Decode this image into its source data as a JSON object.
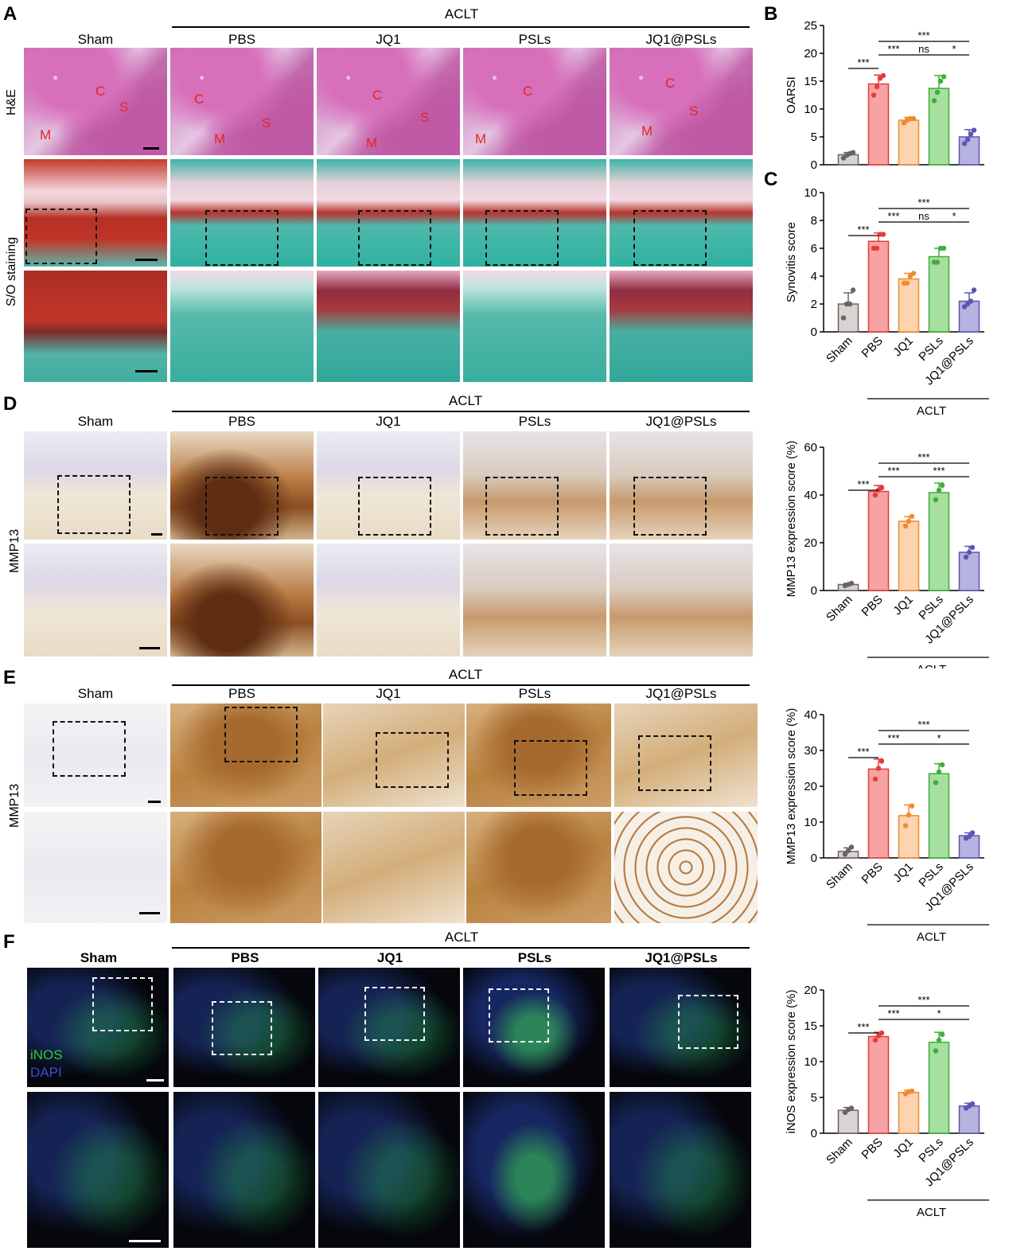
{
  "panel_letters": {
    "A": "A",
    "B": "B",
    "C": "C",
    "D": "D",
    "E": "E",
    "F": "F"
  },
  "group_label": "ACLT",
  "groups": [
    "Sham",
    "PBS",
    "JQ1",
    "PSLs",
    "JQ1@PSLs"
  ],
  "row_labels": {
    "he": "H&E",
    "so": "S/O staining",
    "mmp13": "MMP13"
  },
  "tissue_letters": {
    "c": "C",
    "s": "S",
    "m": "M"
  },
  "stain_legend": {
    "green": "iNOS",
    "blue": "DAPI"
  },
  "colors": {
    "Sham": "#d9d4d2",
    "Sham_edge": "#6b6360",
    "PBS": "#f5a3a3",
    "PBS_edge": "#e83a3a",
    "JQ1": "#fdd3b0",
    "JQ1_edge": "#f08a2d",
    "PSLs": "#a6dfa0",
    "PSLs_edge": "#3fae3a",
    "JQ1@PSLs": "#b6b3e0",
    "JQ1@PSLs_edge": "#5a56b3",
    "point": "#000000"
  },
  "chart_data": [
    {
      "id": "B",
      "type": "bar",
      "categories": [
        "Sham",
        "PBS",
        "JQ1",
        "PSLs",
        "JQ1@PSLs"
      ],
      "values": [
        1.8,
        14.5,
        8.0,
        13.7,
        5.0
      ],
      "errors": [
        0.4,
        1.6,
        0.5,
        2.3,
        1.3
      ],
      "points": [
        [
          1.2,
          1.7,
          2.0,
          2.2
        ],
        [
          12.5,
          14.0,
          15.5,
          16.0
        ],
        [
          7.5,
          8.0,
          8.3,
          8.3
        ],
        [
          11.5,
          13.0,
          15.0,
          15.8
        ],
        [
          3.8,
          4.5,
          5.5,
          6.2
        ]
      ],
      "ylabel": "OARSI",
      "ylim": [
        0,
        25
      ],
      "yticks": [
        0,
        5,
        10,
        15,
        20,
        25
      ],
      "significance": [
        {
          "from": 0,
          "to": 1,
          "label": "***"
        },
        {
          "from": 1,
          "to": 2,
          "label": "***"
        },
        {
          "from": 2,
          "to": 3,
          "label": "ns"
        },
        {
          "from": 3,
          "to": 4,
          "label": "*"
        },
        {
          "from": 1,
          "to": 4,
          "label": "***"
        }
      ],
      "group_label": ""
    },
    {
      "id": "C",
      "type": "bar",
      "categories": [
        "Sham",
        "PBS",
        "JQ1",
        "PSLs",
        "JQ1@PSLs"
      ],
      "values": [
        2.0,
        6.5,
        3.8,
        5.4,
        2.2
      ],
      "errors": [
        0.8,
        0.6,
        0.4,
        0.6,
        0.6
      ],
      "points": [
        [
          1.0,
          2.0,
          2.0,
          3.0
        ],
        [
          6.0,
          6.0,
          7.0,
          7.0
        ],
        [
          3.5,
          3.5,
          4.0,
          4.2
        ],
        [
          5.0,
          5.0,
          6.0,
          6.0
        ],
        [
          1.8,
          2.0,
          2.2,
          3.0
        ]
      ],
      "ylabel": "Synovitis score",
      "ylim": [
        0,
        10
      ],
      "yticks": [
        0,
        2,
        4,
        6,
        8,
        10
      ],
      "significance": [
        {
          "from": 0,
          "to": 1,
          "label": "***"
        },
        {
          "from": 1,
          "to": 2,
          "label": "***"
        },
        {
          "from": 2,
          "to": 3,
          "label": "ns"
        },
        {
          "from": 3,
          "to": 4,
          "label": "*"
        },
        {
          "from": 1,
          "to": 4,
          "label": "***"
        }
      ],
      "group_label": "ACLT"
    },
    {
      "id": "D",
      "type": "bar",
      "categories": [
        "Sham",
        "PBS",
        "JQ1",
        "PSLs",
        "JQ1@PSLs"
      ],
      "values": [
        2.5,
        41.5,
        29.0,
        41.0,
        16.0
      ],
      "errors": [
        0.5,
        2.5,
        2.0,
        4.0,
        2.5
      ],
      "points": [
        [
          2.0,
          2.5,
          3.0
        ],
        [
          40.0,
          42.0,
          43.0
        ],
        [
          27.0,
          29.0,
          31.0
        ],
        [
          38.0,
          42.0,
          44.0
        ],
        [
          14.0,
          16.0,
          18.0
        ]
      ],
      "ylabel": "MMP13 expression score (%)",
      "ylim": [
        0,
        60
      ],
      "yticks": [
        0,
        20,
        40,
        60
      ],
      "significance": [
        {
          "from": 0,
          "to": 1,
          "label": "***"
        },
        {
          "from": 1,
          "to": 2,
          "label": "***"
        },
        {
          "from": 2,
          "to": 4,
          "label": "***"
        },
        {
          "from": 1,
          "to": 4,
          "label": "***"
        }
      ],
      "group_label": "ACLT"
    },
    {
      "id": "E",
      "type": "bar",
      "categories": [
        "Sham",
        "PBS",
        "JQ1",
        "PSLs",
        "JQ1@PSLs"
      ],
      "values": [
        1.8,
        24.8,
        11.8,
        23.5,
        6.2
      ],
      "errors": [
        1.0,
        2.8,
        3.0,
        2.8,
        0.8
      ],
      "points": [
        [
          1.0,
          2.0,
          3.0
        ],
        [
          22.0,
          25.0,
          27.0
        ],
        [
          9.0,
          12.0,
          14.5
        ],
        [
          21.0,
          24.0,
          26.0
        ],
        [
          5.5,
          6.0,
          7.0
        ]
      ],
      "ylabel": "MMP13 expression score (%)",
      "ylim": [
        0,
        40
      ],
      "yticks": [
        0,
        10,
        20,
        30,
        40
      ],
      "significance": [
        {
          "from": 0,
          "to": 1,
          "label": "***"
        },
        {
          "from": 1,
          "to": 2,
          "label": "***"
        },
        {
          "from": 2,
          "to": 4,
          "label": "*"
        },
        {
          "from": 1,
          "to": 4,
          "label": "***"
        }
      ],
      "group_label": "ACLT"
    },
    {
      "id": "F",
      "type": "bar",
      "categories": [
        "Sham",
        "PBS",
        "JQ1",
        "PSLs",
        "JQ1@PSLs"
      ],
      "values": [
        3.2,
        13.5,
        5.7,
        12.7,
        3.8
      ],
      "errors": [
        0.4,
        0.6,
        0.3,
        1.4,
        0.4
      ],
      "points": [
        [
          2.9,
          3.3,
          3.5
        ],
        [
          13.0,
          13.6,
          14.0
        ],
        [
          5.5,
          5.8,
          5.9
        ],
        [
          11.5,
          13.0,
          13.8
        ],
        [
          3.5,
          3.8,
          4.1
        ]
      ],
      "ylabel": "iNOS expression score (%)",
      "ylim": [
        0,
        20
      ],
      "yticks": [
        0,
        5,
        10,
        15,
        20
      ],
      "significance": [
        {
          "from": 0,
          "to": 1,
          "label": "***"
        },
        {
          "from": 1,
          "to": 2,
          "label": "***"
        },
        {
          "from": 2,
          "to": 4,
          "label": "*"
        },
        {
          "from": 1,
          "to": 4,
          "label": "***"
        }
      ],
      "group_label": "ACLT"
    }
  ]
}
